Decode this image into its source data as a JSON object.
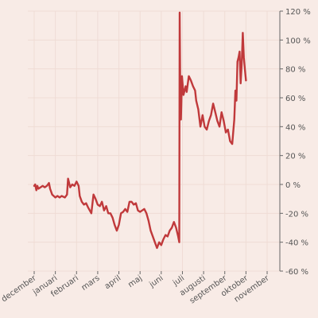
{
  "chart_data": {
    "type": "line",
    "title": "",
    "xlabel": "",
    "ylabel": "",
    "x_tick_labels": [
      "december",
      "januari",
      "februari",
      "mars",
      "april",
      "maj",
      "juni",
      "juli",
      "augusti",
      "september",
      "oktober",
      "november"
    ],
    "y_ticks": [
      -60,
      -40,
      -20,
      0,
      20,
      40,
      60,
      80,
      100,
      120
    ],
    "y_tick_labels": [
      "-60 %",
      "-40 %",
      "-20 %",
      "0 %",
      "20 %",
      "40 %",
      "60 %",
      "80 %",
      "100 %",
      "120 %"
    ],
    "ylim": [
      -60,
      120
    ],
    "xlim": [
      -0.3,
      11.6
    ],
    "grid": true,
    "line_color": "#c0393b",
    "series": [
      {
        "points": [
          [
            0.0,
            -1
          ],
          [
            0.05,
            0
          ],
          [
            0.1,
            -4
          ],
          [
            0.15,
            -1
          ],
          [
            0.2,
            -3
          ],
          [
            0.3,
            -2
          ],
          [
            0.4,
            -1
          ],
          [
            0.5,
            -2
          ],
          [
            0.6,
            -1
          ],
          [
            0.7,
            1
          ],
          [
            0.75,
            -3
          ],
          [
            0.85,
            -7
          ],
          [
            1.0,
            -9
          ],
          [
            1.1,
            -8
          ],
          [
            1.2,
            -9
          ],
          [
            1.3,
            -8
          ],
          [
            1.45,
            -9
          ],
          [
            1.55,
            -7
          ],
          [
            1.6,
            4
          ],
          [
            1.7,
            -2
          ],
          [
            1.8,
            0
          ],
          [
            1.9,
            -1
          ],
          [
            2.0,
            2
          ],
          [
            2.1,
            -1
          ],
          [
            2.15,
            -8
          ],
          [
            2.25,
            -12
          ],
          [
            2.35,
            -14
          ],
          [
            2.45,
            -13
          ],
          [
            2.55,
            -16
          ],
          [
            2.7,
            -20
          ],
          [
            2.8,
            -7
          ],
          [
            2.9,
            -10
          ],
          [
            3.0,
            -14
          ],
          [
            3.1,
            -15
          ],
          [
            3.2,
            -12
          ],
          [
            3.3,
            -18
          ],
          [
            3.4,
            -15
          ],
          [
            3.5,
            -20
          ],
          [
            3.6,
            -20
          ],
          [
            3.7,
            -23
          ],
          [
            3.8,
            -28
          ],
          [
            3.9,
            -32
          ],
          [
            4.0,
            -28
          ],
          [
            4.1,
            -20
          ],
          [
            4.2,
            -19
          ],
          [
            4.3,
            -17
          ],
          [
            4.4,
            -19
          ],
          [
            4.5,
            -12
          ],
          [
            4.6,
            -12
          ],
          [
            4.7,
            -14
          ],
          [
            4.8,
            -13
          ],
          [
            4.9,
            -18
          ],
          [
            5.0,
            -19
          ],
          [
            5.1,
            -18
          ],
          [
            5.2,
            -17
          ],
          [
            5.3,
            -20
          ],
          [
            5.4,
            -25
          ],
          [
            5.5,
            -32
          ],
          [
            5.6,
            -36
          ],
          [
            5.7,
            -40
          ],
          [
            5.8,
            -44
          ],
          [
            5.9,
            -40
          ],
          [
            6.0,
            -42
          ],
          [
            6.1,
            -38
          ],
          [
            6.2,
            -35
          ],
          [
            6.3,
            -36
          ],
          [
            6.4,
            -32
          ],
          [
            6.5,
            -30
          ],
          [
            6.6,
            -26
          ],
          [
            6.7,
            -30
          ],
          [
            6.8,
            -36
          ],
          [
            6.85,
            -40
          ],
          [
            6.87,
            119
          ],
          [
            6.9,
            60
          ],
          [
            6.93,
            45
          ],
          [
            6.98,
            75
          ],
          [
            7.05,
            62
          ],
          [
            7.15,
            68
          ],
          [
            7.2,
            64
          ],
          [
            7.3,
            75
          ],
          [
            7.4,
            72
          ],
          [
            7.5,
            68
          ],
          [
            7.6,
            65
          ],
          [
            7.65,
            58
          ],
          [
            7.75,
            52
          ],
          [
            7.85,
            40
          ],
          [
            7.95,
            48
          ],
          [
            8.05,
            40
          ],
          [
            8.15,
            38
          ],
          [
            8.25,
            44
          ],
          [
            8.35,
            48
          ],
          [
            8.45,
            56
          ],
          [
            8.55,
            50
          ],
          [
            8.65,
            44
          ],
          [
            8.75,
            40
          ],
          [
            8.85,
            50
          ],
          [
            8.95,
            44
          ],
          [
            9.05,
            36
          ],
          [
            9.15,
            38
          ],
          [
            9.25,
            30
          ],
          [
            9.35,
            28
          ],
          [
            9.45,
            45
          ],
          [
            9.5,
            65
          ],
          [
            9.55,
            58
          ],
          [
            9.6,
            85
          ],
          [
            9.65,
            88
          ],
          [
            9.7,
            92
          ],
          [
            9.75,
            70
          ],
          [
            9.8,
            84
          ],
          [
            9.85,
            105
          ],
          [
            9.9,
            88
          ],
          [
            9.95,
            80
          ],
          [
            10.0,
            72
          ]
        ]
      }
    ]
  }
}
